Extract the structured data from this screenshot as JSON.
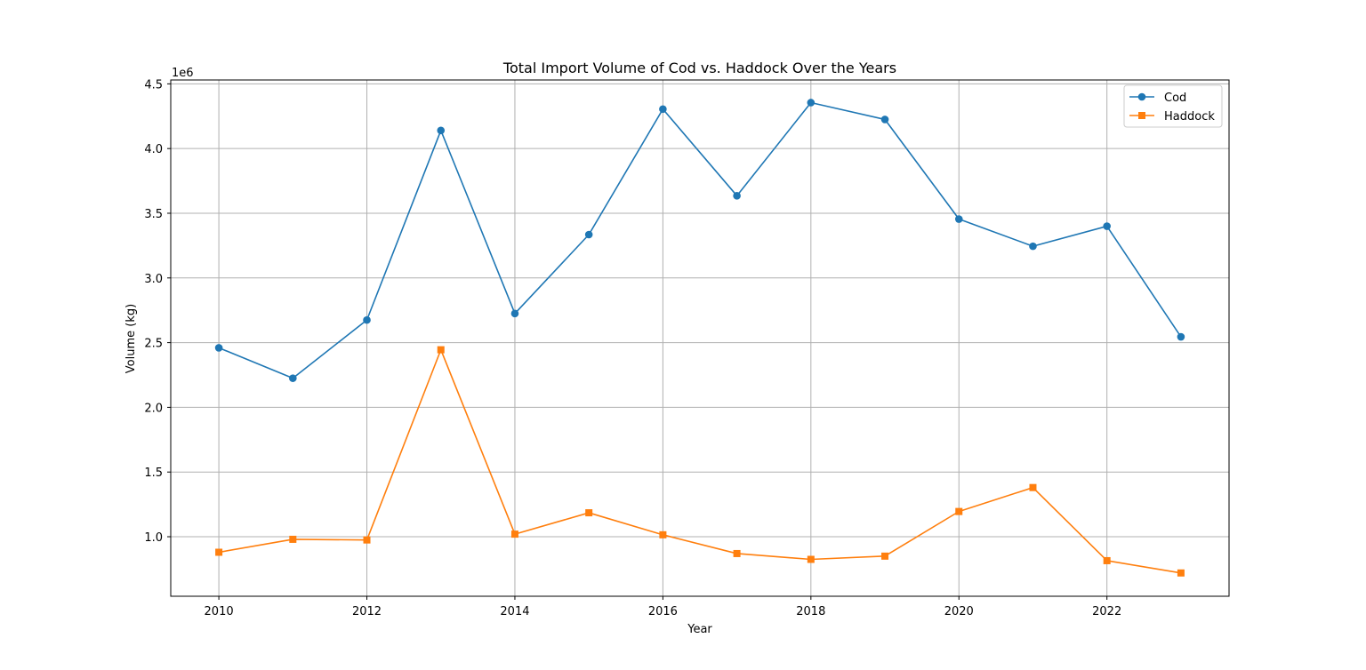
{
  "chart_data": {
    "type": "line",
    "title": "Total Import Volume of Cod vs. Haddock Over the Years",
    "xlabel": "Year",
    "ylabel": "Volume (kg)",
    "y_offset_label": "1e6",
    "x": [
      2010,
      2011,
      2012,
      2013,
      2014,
      2015,
      2016,
      2017,
      2018,
      2019,
      2020,
      2021,
      2022,
      2023
    ],
    "xlim": [
      2009.35,
      2023.65
    ],
    "ylim": [
      540000,
      4530000
    ],
    "x_ticks": [
      2010,
      2012,
      2014,
      2016,
      2018,
      2020,
      2022
    ],
    "x_tick_labels": [
      "2010",
      "2012",
      "2014",
      "2016",
      "2018",
      "2020",
      "2022"
    ],
    "y_ticks": [
      1000000,
      1500000,
      2000000,
      2500000,
      3000000,
      3500000,
      4000000,
      4500000
    ],
    "y_tick_labels": [
      "1.0",
      "1.5",
      "2.0",
      "2.5",
      "3.0",
      "3.5",
      "4.0",
      "4.5"
    ],
    "grid": true,
    "legend_position": "top-right",
    "series": [
      {
        "name": "Cod",
        "color": "#1f77b4",
        "marker": "circle",
        "values": [
          2460000,
          2225000,
          2675000,
          4140000,
          2725000,
          3335000,
          4305000,
          3635000,
          4355000,
          4225000,
          3455000,
          3245000,
          3400000,
          2545000
        ]
      },
      {
        "name": "Haddock",
        "color": "#ff7f0e",
        "marker": "square",
        "values": [
          880000,
          980000,
          975000,
          2445000,
          1020000,
          1185000,
          1015000,
          870000,
          825000,
          850000,
          1195000,
          1380000,
          815000,
          720000
        ]
      }
    ]
  }
}
